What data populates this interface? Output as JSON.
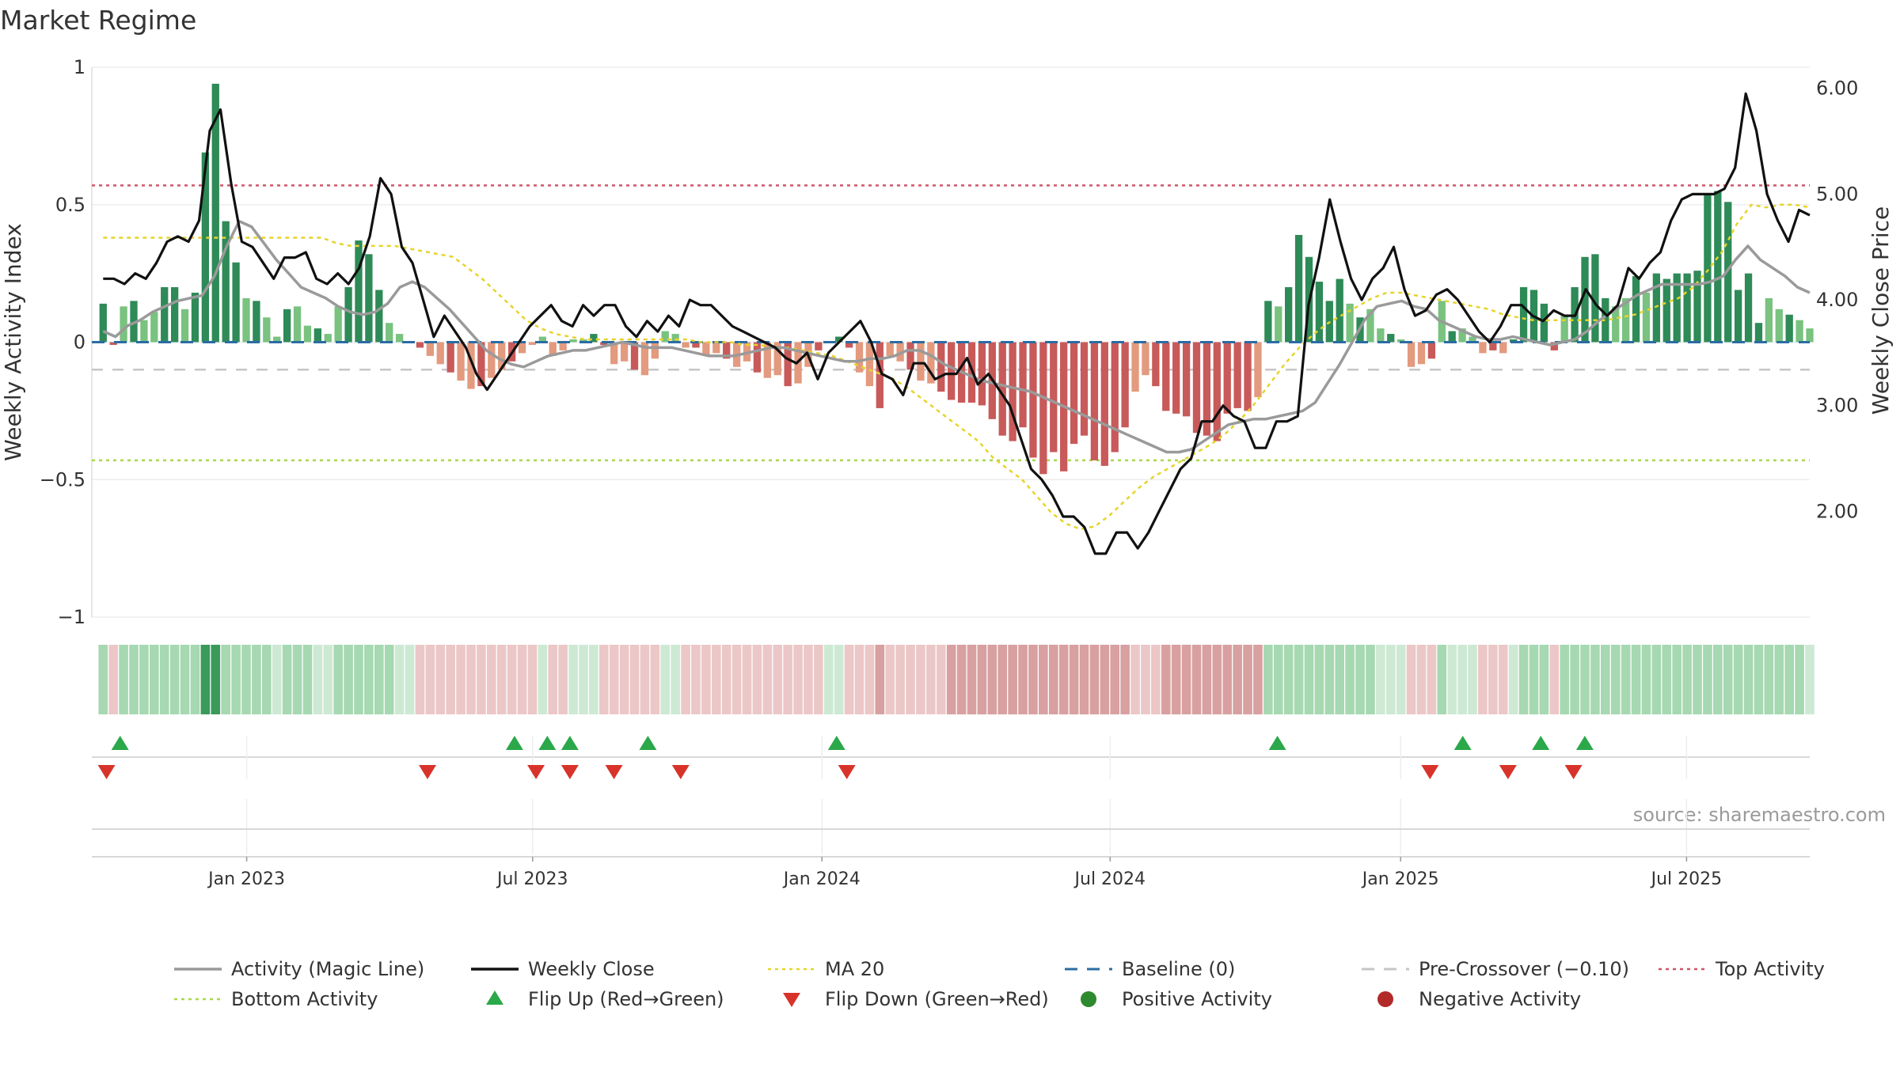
{
  "chart_data": {
    "type": "bar",
    "title": "Market Regime",
    "source": "source: sharemaestro.com",
    "left_axis": {
      "label": "Weekly Activity Index",
      "range": [
        -1.0,
        1.0
      ],
      "ticks": [
        {
          "value": 1,
          "label": "1"
        },
        {
          "value": 0.5,
          "label": "0.5"
        },
        {
          "value": 0,
          "label": "0"
        },
        {
          "value": -0.5,
          "label": "−0.5"
        },
        {
          "value": -1,
          "label": "−1"
        }
      ]
    },
    "right_axis": {
      "label": "Weekly Close Price",
      "range": [
        1.0,
        6.2
      ],
      "ticks": [
        {
          "value": 6,
          "label": "6.00"
        },
        {
          "value": 5,
          "label": "5.00"
        },
        {
          "value": 4,
          "label": "4.00"
        },
        {
          "value": 3,
          "label": "3.00"
        },
        {
          "value": 2,
          "label": "2.00"
        }
      ]
    },
    "x_axis": {
      "range": [
        -3.0,
        149.0
      ],
      "ticks": [
        {
          "label": "Jan 2023",
          "week": 10.7
        },
        {
          "label": "Jul 2023",
          "week": 36.0
        },
        {
          "label": "Jan 2024",
          "week": 61.6
        },
        {
          "label": "Jul 2024",
          "week": 87.1
        },
        {
          "label": "Jan 2025",
          "week": 112.8
        },
        {
          "label": "Jul 2025",
          "week": 138.1
        }
      ]
    },
    "reference_lines": {
      "top": 0.57,
      "bottom": -0.43,
      "pre_crossover": -0.1,
      "baseline": 0
    },
    "weeks_start": -2,
    "activity": [
      0.14,
      -0.01,
      0.13,
      0.15,
      0.08,
      0.11,
      0.2,
      0.2,
      0.12,
      0.18,
      0.69,
      0.94,
      0.44,
      0.29,
      0.16,
      0.15,
      0.09,
      0.02,
      0.12,
      0.13,
      0.06,
      0.05,
      0.03,
      0.13,
      0.2,
      0.37,
      0.32,
      0.19,
      0.07,
      0.03,
      0.0,
      -0.02,
      -0.05,
      -0.08,
      -0.11,
      -0.14,
      -0.17,
      -0.16,
      -0.13,
      -0.1,
      -0.07,
      -0.04,
      -0.01,
      0.02,
      -0.05,
      -0.03,
      0.01,
      0.01,
      0.03,
      -0.01,
      -0.08,
      -0.07,
      -0.1,
      -0.12,
      -0.06,
      0.04,
      0.03,
      -0.02,
      -0.02,
      -0.05,
      -0.04,
      -0.06,
      -0.09,
      -0.07,
      -0.11,
      -0.13,
      -0.12,
      -0.16,
      -0.15,
      -0.09,
      -0.03,
      0.0,
      0.02,
      -0.02,
      -0.11,
      -0.16,
      -0.24,
      -0.05,
      -0.07,
      -0.1,
      -0.14,
      -0.15,
      -0.18,
      -0.21,
      -0.22,
      -0.22,
      -0.23,
      -0.28,
      -0.34,
      -0.36,
      -0.31,
      -0.42,
      -0.48,
      -0.4,
      -0.47,
      -0.37,
      -0.34,
      -0.43,
      -0.45,
      -0.4,
      -0.31,
      -0.18,
      -0.12,
      -0.16,
      -0.25,
      -0.26,
      -0.27,
      -0.33,
      -0.34,
      -0.36,
      -0.26,
      -0.24,
      -0.25,
      -0.2,
      0.15,
      0.13,
      0.2,
      0.39,
      0.31,
      0.22,
      0.15,
      0.23,
      0.14,
      0.09,
      0.12,
      0.05,
      0.03,
      0.01,
      -0.09,
      -0.08,
      -0.06,
      0.15,
      0.04,
      0.05,
      0.02,
      -0.04,
      -0.03,
      -0.04,
      0.01,
      0.2,
      0.19,
      0.14,
      -0.03,
      0.1,
      0.2,
      0.31,
      0.32,
      0.16,
      0.13,
      0.16,
      0.24,
      0.18,
      0.25,
      0.23,
      0.25,
      0.25,
      0.26,
      0.54,
      0.55,
      0.51,
      0.19,
      0.25,
      0.07,
      0.16,
      0.12,
      0.1,
      0.08,
      0.05
    ],
    "close": [
      4.2,
      4.2,
      4.15,
      4.25,
      4.2,
      4.35,
      4.55,
      4.6,
      4.55,
      4.75,
      5.6,
      5.8,
      5.1,
      4.55,
      4.5,
      4.35,
      4.2,
      4.4,
      4.4,
      4.45,
      4.2,
      4.15,
      4.25,
      4.15,
      4.3,
      4.6,
      5.15,
      5.0,
      4.5,
      4.35,
      4.0,
      3.65,
      3.85,
      3.7,
      3.55,
      3.3,
      3.15,
      3.3,
      3.45,
      3.6,
      3.75,
      3.85,
      3.95,
      3.8,
      3.75,
      3.95,
      3.85,
      3.95,
      3.95,
      3.75,
      3.65,
      3.8,
      3.7,
      3.85,
      3.75,
      4.0,
      3.95,
      3.95,
      3.85,
      3.75,
      3.7,
      3.65,
      3.6,
      3.55,
      3.45,
      3.4,
      3.5,
      3.25,
      3.5,
      3.6,
      3.7,
      3.8,
      3.6,
      3.3,
      3.25,
      3.1,
      3.4,
      3.4,
      3.25,
      3.3,
      3.3,
      3.45,
      3.2,
      3.3,
      3.15,
      3.0,
      2.7,
      2.4,
      2.3,
      2.15,
      1.95,
      1.95,
      1.85,
      1.6,
      1.6,
      1.8,
      1.8,
      1.65,
      1.8,
      2.0,
      2.2,
      2.4,
      2.5,
      2.85,
      2.85,
      3.0,
      2.9,
      2.85,
      2.6,
      2.6,
      2.85,
      2.85,
      2.9,
      3.95,
      4.4,
      4.95,
      4.55,
      4.2,
      4.0,
      4.2,
      4.3,
      4.5,
      4.1,
      3.85,
      3.9,
      4.05,
      4.1,
      4.0,
      3.85,
      3.7,
      3.6,
      3.75,
      3.95,
      3.95,
      3.85,
      3.8,
      3.9,
      3.85,
      3.85,
      4.1,
      3.95,
      3.85,
      3.95,
      4.3,
      4.2,
      4.35,
      4.45,
      4.75,
      4.95,
      5.0,
      5.0,
      5.0,
      5.05,
      5.25,
      5.95,
      5.6,
      5.0,
      4.75,
      4.55,
      4.85,
      4.8
    ],
    "magic_line": [
      0.04,
      0.02,
      0.06,
      0.08,
      0.11,
      0.13,
      0.15,
      0.16,
      0.17,
      0.24,
      0.35,
      0.44,
      0.42,
      0.36,
      0.3,
      0.25,
      0.2,
      0.18,
      0.16,
      0.13,
      0.11,
      0.1,
      0.11,
      0.14,
      0.2,
      0.22,
      0.2,
      0.16,
      0.12,
      0.07,
      0.02,
      -0.03,
      -0.06,
      -0.08,
      -0.09,
      -0.07,
      -0.05,
      -0.04,
      -0.03,
      -0.03,
      -0.02,
      -0.01,
      0.0,
      -0.01,
      -0.02,
      -0.02,
      -0.02,
      -0.03,
      -0.04,
      -0.05,
      -0.05,
      -0.05,
      -0.04,
      -0.03,
      -0.02,
      -0.02,
      -0.03,
      -0.04,
      -0.05,
      -0.06,
      -0.07,
      -0.07,
      -0.06,
      -0.06,
      -0.05,
      -0.03,
      -0.03,
      -0.05,
      -0.08,
      -0.1,
      -0.12,
      -0.14,
      -0.15,
      -0.16,
      -0.17,
      -0.18,
      -0.2,
      -0.22,
      -0.24,
      -0.26,
      -0.28,
      -0.3,
      -0.32,
      -0.34,
      -0.36,
      -0.38,
      -0.4,
      -0.4,
      -0.39,
      -0.36,
      -0.33,
      -0.3,
      -0.29,
      -0.28,
      -0.28,
      -0.27,
      -0.26,
      -0.25,
      -0.22,
      -0.15,
      -0.08,
      0.0,
      0.08,
      0.13,
      0.14,
      0.15,
      0.13,
      0.12,
      0.08,
      0.06,
      0.04,
      0.02,
      0.01,
      0.01,
      0.02,
      0.01,
      0.0,
      -0.01,
      0.0,
      0.01,
      0.04,
      0.08,
      0.11,
      0.14,
      0.17,
      0.19,
      0.21,
      0.21,
      0.21,
      0.21,
      0.22,
      0.24,
      0.3,
      0.35,
      0.3,
      0.27,
      0.24,
      0.2,
      0.18
    ],
    "ma20": [
      0.38,
      0.38,
      0.38,
      0.38,
      0.38,
      0.38,
      0.38,
      0.38,
      0.38,
      0.38,
      0.38,
      0.38,
      0.38,
      0.38,
      0.38,
      0.38,
      0.36,
      0.35,
      0.35,
      0.35,
      0.35,
      0.34,
      0.33,
      0.32,
      0.31,
      0.27,
      0.23,
      0.18,
      0.13,
      0.08,
      0.05,
      0.03,
      0.02,
      0.01,
      0.01,
      0.01,
      0.01,
      0.01,
      0.01,
      0.01,
      0.01,
      0.0,
      0.0,
      0.0,
      -0.01,
      -0.01,
      -0.02,
      -0.02,
      -0.03,
      -0.04,
      -0.05,
      -0.07,
      -0.09,
      -0.11,
      -0.13,
      -0.16,
      -0.2,
      -0.24,
      -0.28,
      -0.32,
      -0.36,
      -0.42,
      -0.46,
      -0.5,
      -0.56,
      -0.62,
      -0.66,
      -0.68,
      -0.67,
      -0.63,
      -0.58,
      -0.53,
      -0.49,
      -0.46,
      -0.43,
      -0.4,
      -0.37,
      -0.33,
      -0.28,
      -0.22,
      -0.15,
      -0.08,
      -0.02,
      0.03,
      0.07,
      0.1,
      0.13,
      0.16,
      0.18,
      0.18,
      0.17,
      0.16,
      0.15,
      0.14,
      0.13,
      0.12,
      0.1,
      0.09,
      0.08,
      0.08,
      0.08,
      0.08,
      0.08,
      0.08,
      0.09,
      0.1,
      0.12,
      0.14,
      0.16,
      0.2,
      0.26,
      0.33,
      0.43,
      0.5,
      0.49,
      0.5,
      0.5,
      0.49
    ],
    "flips_up": [
      -0.5,
      34.4,
      37.3,
      39.3,
      46.2,
      62.9,
      101.9,
      118.3,
      125.2,
      129.1
    ],
    "flips_down": [
      -1.7,
      26.7,
      36.3,
      39.3,
      43.2,
      49.1,
      63.8,
      115.4,
      122.3,
      128.1
    ],
    "regime_hues": [
      {
        "name": "strong-positive",
        "color": "#3a9a5a"
      },
      {
        "name": "positive",
        "color": "#a6d8b1"
      },
      {
        "name": "light-positive",
        "color": "#cde9d4"
      },
      {
        "name": "light-negative",
        "color": "#ecc7c7"
      },
      {
        "name": "negative",
        "color": "#d8a0a0"
      }
    ],
    "bar_colors": {
      "strong_pos": "#2e8a57",
      "pos": "#79c27f",
      "strong_neg": "#c85a5a",
      "neg": "#e39a7e"
    },
    "line_colors": {
      "magic": "#9a9a9a",
      "close": "#111111",
      "ma20": "#e6d42a",
      "baseline": "#2b6ca3",
      "pre_crossover": "#c6c6c6",
      "top": "#d0556a",
      "bottom": "#a8d84a",
      "flip_up": "#2aa84a",
      "flip_down": "#d8332a",
      "positive_dot": "#2e8a2e",
      "negative_dot": "#b22a2a"
    },
    "legend": [
      {
        "label": "Activity (Magic Line)",
        "kind": "line",
        "key": "magic"
      },
      {
        "label": "Weekly Close",
        "kind": "line",
        "key": "close"
      },
      {
        "label": "MA 20",
        "kind": "dotted",
        "key": "ma20"
      },
      {
        "label": "Baseline (0)",
        "kind": "dashed",
        "key": "baseline"
      },
      {
        "label": "Pre-Crossover (−0.10)",
        "kind": "dashed",
        "key": "pre_crossover"
      },
      {
        "label": "Top Activity",
        "kind": "dotted",
        "key": "top"
      },
      {
        "label": "Bottom Activity",
        "kind": "dotted",
        "key": "bottom"
      },
      {
        "label": "Flip Up (Red→Green)",
        "kind": "tri-up",
        "key": "flip_up"
      },
      {
        "label": "Flip Down (Green→Red)",
        "kind": "tri-down",
        "key": "flip_down"
      },
      {
        "label": "Positive Activity",
        "kind": "dot",
        "key": "positive_dot"
      },
      {
        "label": "Negative Activity",
        "kind": "dot",
        "key": "negative_dot"
      }
    ]
  }
}
